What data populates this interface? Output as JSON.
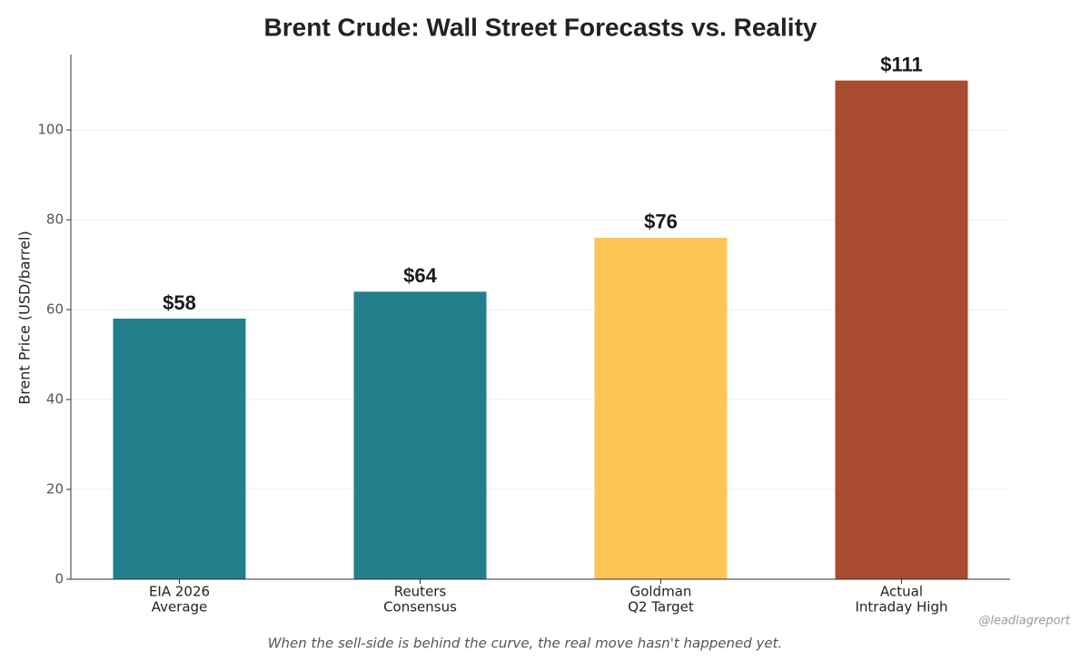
{
  "chart_data": {
    "type": "bar",
    "title": "Brent Crude: Wall Street Forecasts vs. Reality",
    "y_label": "Brent Price (USD/barrel)",
    "categories": [
      [
        "EIA 2026",
        "Average"
      ],
      [
        "Reuters",
        "Consensus"
      ],
      [
        "Goldman",
        "Q2 Target"
      ],
      [
        "Actual",
        "Intraday High"
      ]
    ],
    "values": [
      58,
      64,
      76,
      111
    ],
    "value_labels": [
      "$58",
      "$64",
      "$76",
      "$111"
    ],
    "colors": [
      "#237f8c",
      "#237f8c",
      "#fcc556",
      "#a84b30"
    ],
    "ylim": [
      0,
      116.8
    ],
    "yticks": [
      0,
      20,
      40,
      60,
      80,
      100
    ],
    "grid": true,
    "annotation": "When the sell-side is behind the curve, the real move hasn't happened yet.",
    "watermark": "@leadlagreport"
  }
}
